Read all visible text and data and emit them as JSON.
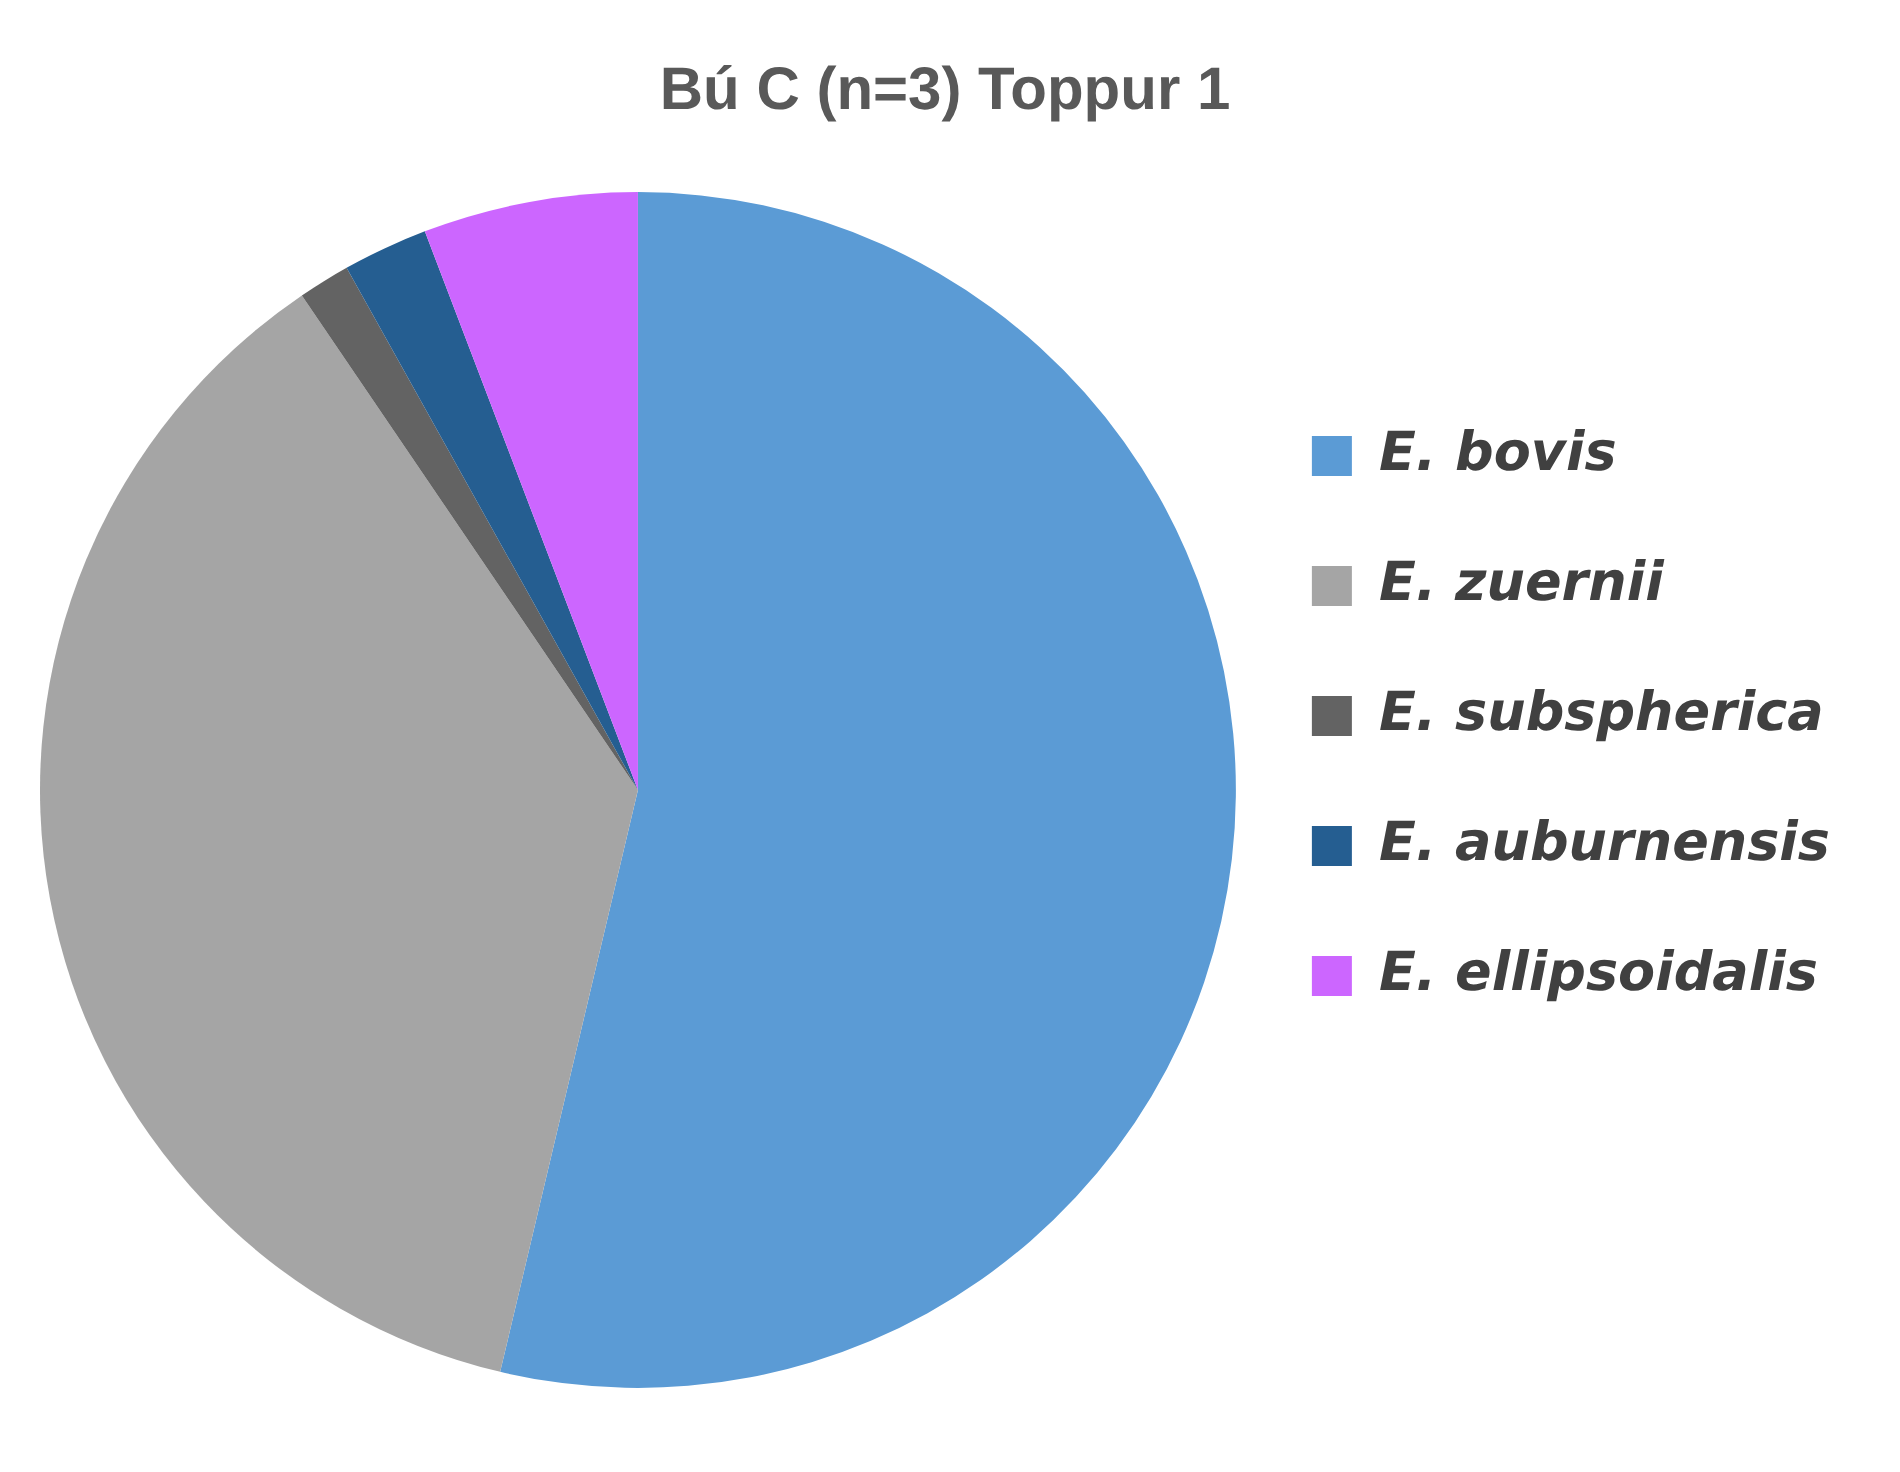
{
  "chart_data": {
    "type": "pie",
    "title": "Bú C (n=3) Toppur 1",
    "categories": [
      "E. bovis",
      "E. zuernii",
      "E. subspherica",
      "E. auburnensis",
      "E. ellipsoidalis"
    ],
    "values": [
      53.7,
      36.8,
      1.4,
      2.3,
      5.8
    ],
    "colors": [
      "#5b9bd5",
      "#a5a5a5",
      "#636363",
      "#255e91",
      "#cc66ff"
    ],
    "legend": "right"
  }
}
